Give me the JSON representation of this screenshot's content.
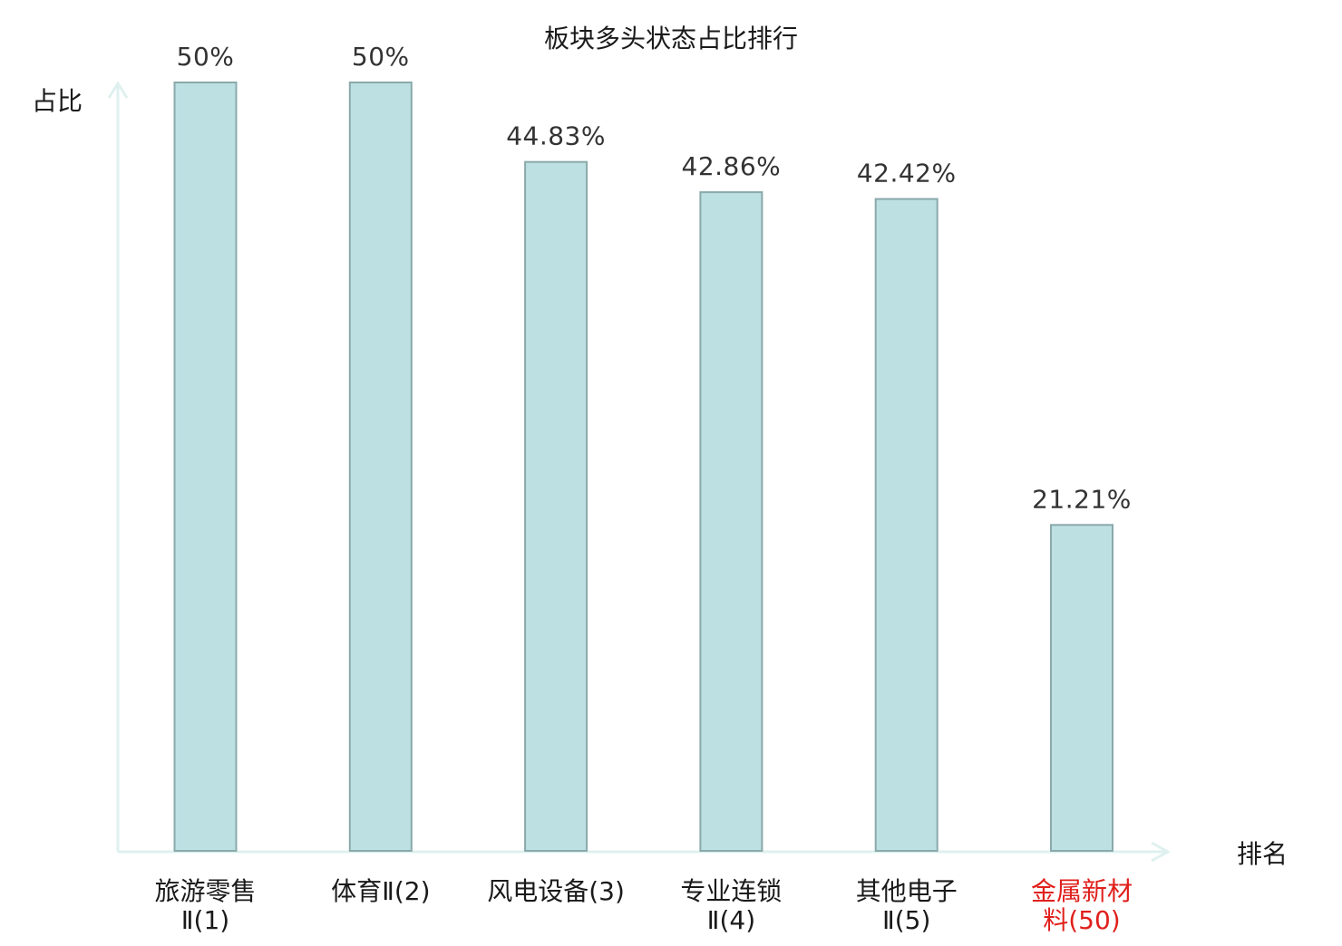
{
  "chart_data": {
    "type": "bar",
    "title": "板块多头状态占比排行",
    "ylabel": "占比",
    "xlabel": "排名",
    "categories": [
      [
        "旅游零售",
        "Ⅱ(1)"
      ],
      [
        "体育Ⅱ(2)"
      ],
      [
        "风电设备(3)"
      ],
      [
        "专业连锁",
        "Ⅱ(4)"
      ],
      [
        "其他电子",
        "Ⅱ(5)"
      ],
      [
        "金属新材",
        "料(50)"
      ]
    ],
    "values": [
      50,
      50,
      44.83,
      42.86,
      42.42,
      21.21
    ],
    "value_labels": [
      "50%",
      "50%",
      "44.83%",
      "42.86%",
      "42.42%",
      "21.21%"
    ],
    "highlight_index": 5,
    "ylim": [
      0,
      50
    ],
    "grid": false,
    "legend": "none",
    "colors": {
      "bar_fill": "#bde0e3",
      "bar_stroke": "#8aa9ab",
      "axis": "#dff1ef",
      "label": "#1a1a1a",
      "highlight_label": "#e0201c"
    }
  }
}
